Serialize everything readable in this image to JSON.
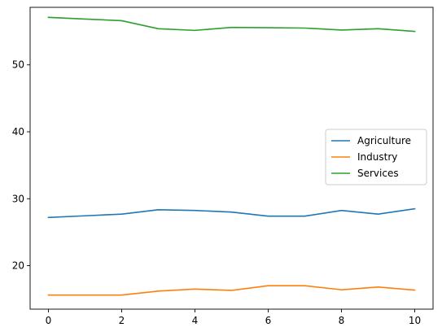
{
  "chart_data": {
    "type": "line",
    "x": [
      0,
      1,
      2,
      3,
      4,
      5,
      6,
      7,
      8,
      9,
      10
    ],
    "series": [
      {
        "name": "Agriculture",
        "color": "#1f77b4",
        "values": [
          27.2,
          27.45,
          27.7,
          28.35,
          28.25,
          28.0,
          27.4,
          27.4,
          28.25,
          27.7,
          28.5
        ]
      },
      {
        "name": "Industry",
        "color": "#ff7f0e",
        "values": [
          15.6,
          15.6,
          15.6,
          16.2,
          16.5,
          16.3,
          17.0,
          17.0,
          16.4,
          16.8,
          16.35
        ]
      },
      {
        "name": "Services",
        "color": "#2ca02c",
        "values": [
          57.1,
          56.85,
          56.6,
          55.4,
          55.15,
          55.6,
          55.55,
          55.5,
          55.2,
          55.4,
          55.0
        ]
      }
    ],
    "xlim": [
      -0.5,
      10.5
    ],
    "ylim": [
      13.5,
      58.6
    ],
    "xticks": [
      0,
      2,
      4,
      6,
      8,
      10
    ],
    "yticks": [
      20,
      30,
      40,
      50
    ],
    "legend": "center-right",
    "grid": false,
    "xlabel": "",
    "ylabel": "",
    "title": ""
  }
}
